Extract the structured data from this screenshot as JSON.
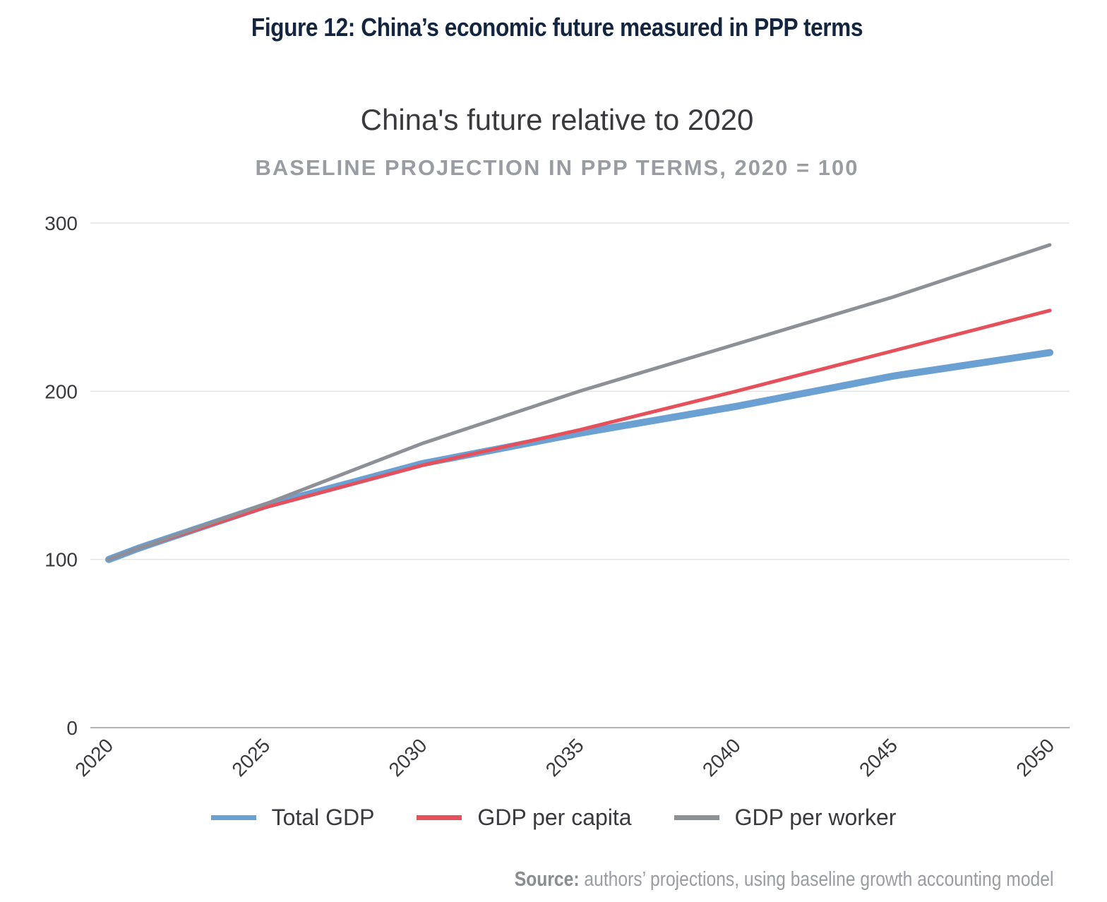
{
  "figure_title": "Figure 12: China’s economic future measured in PPP terms",
  "source": {
    "label": "Source:",
    "text": " authors’ projections, using baseline growth accounting model"
  },
  "chart_data": {
    "type": "line",
    "title": "China's future relative to 2020",
    "subtitle": "BASELINE PROJECTION IN PPP TERMS, 2020 = 100",
    "xlabel": "",
    "ylabel": "",
    "x": [
      2020,
      2021,
      2025,
      2030,
      2035,
      2040,
      2045,
      2050
    ],
    "xticks": [
      "2020",
      "2025",
      "2030",
      "2035",
      "2040",
      "2045",
      "2050"
    ],
    "yticks": [
      "0",
      "100",
      "200",
      "300"
    ],
    "xlim": [
      2020,
      2050
    ],
    "ylim": [
      0,
      300
    ],
    "grid": "horizontal",
    "legend": "bottom",
    "series": [
      {
        "name": "Total GDP",
        "color": "#6aa0d2",
        "values": [
          100,
          107,
          132,
          157,
          175,
          191,
          209,
          223
        ]
      },
      {
        "name": "GDP per capita",
        "color": "#e5505a",
        "values": [
          100,
          107,
          131,
          156,
          177,
          200,
          224,
          248
        ]
      },
      {
        "name": "GDP per worker",
        "color": "#8e9097",
        "values": [
          100,
          107,
          133,
          169,
          200,
          228,
          256,
          287
        ]
      }
    ]
  }
}
